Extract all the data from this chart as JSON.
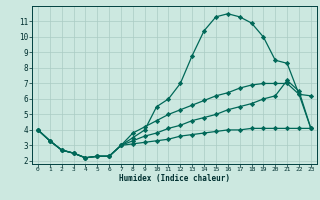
{
  "xlabel": "Humidex (Indice chaleur)",
  "background_color": "#cce8e0",
  "grid_color": "#aaccc4",
  "line_color": "#006858",
  "xlim": [
    -0.5,
    23.5
  ],
  "ylim": [
    1.8,
    12.0
  ],
  "yticks": [
    2,
    3,
    4,
    5,
    6,
    7,
    8,
    9,
    10,
    11
  ],
  "xticks": [
    0,
    1,
    2,
    3,
    4,
    5,
    6,
    7,
    8,
    9,
    10,
    11,
    12,
    13,
    14,
    15,
    16,
    17,
    18,
    19,
    20,
    21,
    22,
    23
  ],
  "line1_x": [
    0,
    1,
    2,
    3,
    4,
    5,
    6,
    7,
    8,
    9,
    10,
    11,
    12,
    13,
    14,
    15,
    16,
    17,
    18,
    19,
    20,
    21,
    22,
    23
  ],
  "line1_y": [
    4.0,
    3.3,
    2.7,
    2.5,
    2.2,
    2.3,
    2.3,
    3.0,
    3.5,
    4.0,
    5.5,
    6.0,
    7.0,
    8.8,
    10.4,
    11.3,
    11.5,
    11.3,
    10.9,
    10.0,
    8.5,
    8.3,
    6.3,
    6.2
  ],
  "line2_x": [
    0,
    1,
    2,
    3,
    4,
    5,
    6,
    7,
    8,
    9,
    10,
    11,
    12,
    13,
    14,
    15,
    16,
    17,
    18,
    19,
    20,
    21,
    22,
    23
  ],
  "line2_y": [
    4.0,
    3.3,
    2.7,
    2.5,
    2.2,
    2.3,
    2.3,
    3.0,
    3.8,
    4.2,
    4.6,
    5.0,
    5.3,
    5.6,
    5.9,
    6.2,
    6.4,
    6.7,
    6.9,
    7.0,
    7.0,
    7.0,
    6.3,
    4.1
  ],
  "line3_x": [
    0,
    1,
    2,
    3,
    4,
    5,
    6,
    7,
    8,
    9,
    10,
    11,
    12,
    13,
    14,
    15,
    16,
    17,
    18,
    19,
    20,
    21,
    22,
    23
  ],
  "line3_y": [
    4.0,
    3.3,
    2.7,
    2.5,
    2.2,
    2.3,
    2.3,
    3.0,
    3.3,
    3.6,
    3.8,
    4.1,
    4.3,
    4.6,
    4.8,
    5.0,
    5.3,
    5.5,
    5.7,
    6.0,
    6.2,
    7.2,
    6.5,
    4.1
  ],
  "line4_x": [
    0,
    1,
    2,
    3,
    4,
    5,
    6,
    7,
    8,
    9,
    10,
    11,
    12,
    13,
    14,
    15,
    16,
    17,
    18,
    19,
    20,
    21,
    22,
    23
  ],
  "line4_y": [
    4.0,
    3.3,
    2.7,
    2.5,
    2.2,
    2.3,
    2.3,
    3.0,
    3.1,
    3.2,
    3.3,
    3.4,
    3.6,
    3.7,
    3.8,
    3.9,
    4.0,
    4.0,
    4.1,
    4.1,
    4.1,
    4.1,
    4.1,
    4.1
  ]
}
